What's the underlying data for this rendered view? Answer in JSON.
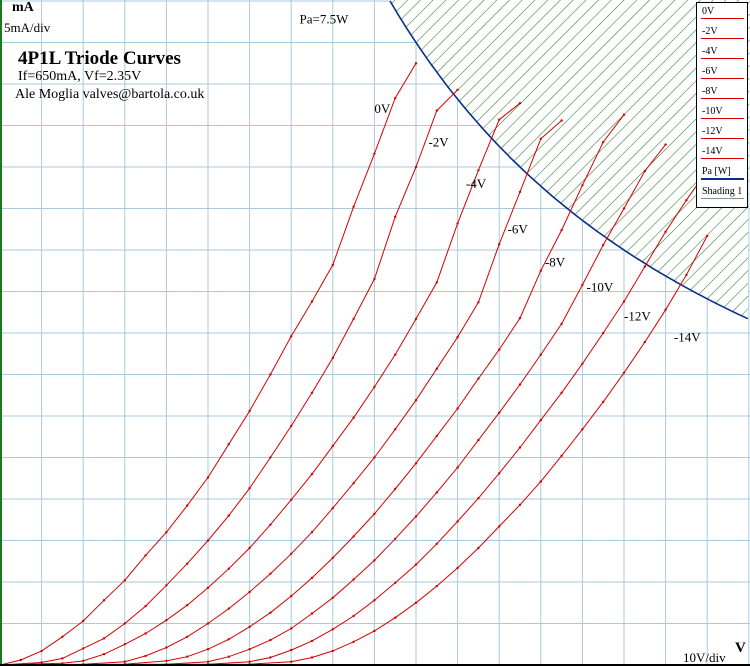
{
  "chart_data": {
    "type": "line",
    "title": "4P1L Triode Curves",
    "subtitle": "If=650mA, Vf=2.35V",
    "author": "Ale Moglia valves@bartola.co.uk",
    "y_unit": "mA",
    "y_scale": "5mA/div",
    "x_unit": "V",
    "x_scale": "10V/div",
    "xlim": [
      0,
      180
    ],
    "ylim": [
      0,
      80
    ],
    "grid": true,
    "x_grid_step": 10,
    "y_grid_step": 5,
    "power_curve": {
      "label": "Pa=7.5W",
      "watts": 7.5,
      "color": "#0b2e8a",
      "hatch_color": "#2e7d32"
    },
    "curve_color": "#d40000",
    "series": [
      {
        "name": "0V",
        "label_at": [
          90,
          66.5
        ],
        "points": [
          [
            0,
            0
          ],
          [
            5,
            0.6
          ],
          [
            10,
            1.7
          ],
          [
            15,
            3.4
          ],
          [
            20,
            5.3
          ],
          [
            25,
            7.8
          ],
          [
            30,
            10.2
          ],
          [
            35,
            13.2
          ],
          [
            40,
            16.0
          ],
          [
            45,
            19.2
          ],
          [
            50,
            22.6
          ],
          [
            55,
            26.6
          ],
          [
            60,
            30.6
          ],
          [
            65,
            35.0
          ],
          [
            70,
            39.6
          ],
          [
            75,
            43.8
          ],
          [
            80,
            48.2
          ],
          [
            85,
            55.2
          ],
          [
            90,
            61.6
          ],
          [
            95,
            68.3
          ],
          [
            100,
            72.5
          ]
        ]
      },
      {
        "name": "-2V",
        "label_at": [
          103,
          62.5
        ],
        "points": [
          [
            0,
            0
          ],
          [
            10,
            0.3
          ],
          [
            15,
            0.8
          ],
          [
            20,
            2.0
          ],
          [
            25,
            3.2
          ],
          [
            30,
            5.0
          ],
          [
            35,
            7.1
          ],
          [
            40,
            9.6
          ],
          [
            45,
            12.2
          ],
          [
            50,
            15.0
          ],
          [
            55,
            18.0
          ],
          [
            60,
            21.3
          ],
          [
            65,
            25.0
          ],
          [
            70,
            28.8
          ],
          [
            75,
            32.8
          ],
          [
            80,
            37.0
          ],
          [
            85,
            41.7
          ],
          [
            90,
            46.5
          ],
          [
            95,
            54.0
          ],
          [
            100,
            60.0
          ],
          [
            105,
            66.8
          ],
          [
            110,
            69.3
          ]
        ]
      },
      {
        "name": "-4V",
        "label_at": [
          112,
          57.5
        ],
        "points": [
          [
            0,
            0
          ],
          [
            15,
            0.2
          ],
          [
            20,
            0.5
          ],
          [
            25,
            1.3
          ],
          [
            30,
            2.5
          ],
          [
            35,
            3.8
          ],
          [
            40,
            5.4
          ],
          [
            45,
            7.2
          ],
          [
            50,
            9.3
          ],
          [
            55,
            11.6
          ],
          [
            60,
            14.1
          ],
          [
            65,
            16.9
          ],
          [
            70,
            19.9
          ],
          [
            75,
            23.0
          ],
          [
            80,
            26.4
          ],
          [
            85,
            29.8
          ],
          [
            90,
            33.5
          ],
          [
            95,
            37.4
          ],
          [
            100,
            41.7
          ],
          [
            105,
            46.1
          ],
          [
            110,
            53.2
          ],
          [
            115,
            59.6
          ],
          [
            120,
            65.7
          ],
          [
            125,
            67.7
          ]
        ]
      },
      {
        "name": "-6V",
        "label_at": [
          122,
          52.0
        ],
        "points": [
          [
            0,
            0
          ],
          [
            20,
            0.1
          ],
          [
            30,
            0.4
          ],
          [
            35,
            1.1
          ],
          [
            40,
            2.1
          ],
          [
            45,
            3.4
          ],
          [
            50,
            5.0
          ],
          [
            55,
            6.8
          ],
          [
            60,
            8.8
          ],
          [
            65,
            11.0
          ],
          [
            70,
            13.4
          ],
          [
            75,
            16.0
          ],
          [
            80,
            18.9
          ],
          [
            85,
            21.9
          ],
          [
            90,
            25.0
          ],
          [
            95,
            28.4
          ],
          [
            100,
            31.9
          ],
          [
            105,
            35.7
          ],
          [
            110,
            39.5
          ],
          [
            115,
            43.7
          ],
          [
            120,
            50.7
          ],
          [
            125,
            57.0
          ],
          [
            130,
            63.4
          ],
          [
            135,
            65.6
          ]
        ]
      },
      {
        "name": "-8V",
        "label_at": [
          131,
          48.0
        ],
        "points": [
          [
            0,
            0
          ],
          [
            30,
            0.1
          ],
          [
            40,
            0.5
          ],
          [
            45,
            1.0
          ],
          [
            50,
            1.9
          ],
          [
            55,
            3.1
          ],
          [
            60,
            4.6
          ],
          [
            65,
            6.3
          ],
          [
            70,
            8.3
          ],
          [
            75,
            10.5
          ],
          [
            80,
            12.9
          ],
          [
            85,
            15.5
          ],
          [
            90,
            18.2
          ],
          [
            95,
            21.2
          ],
          [
            100,
            24.3
          ],
          [
            105,
            27.6
          ],
          [
            110,
            30.9
          ],
          [
            115,
            34.5
          ],
          [
            120,
            38.0
          ],
          [
            125,
            41.8
          ],
          [
            130,
            47.5
          ],
          [
            135,
            52.4
          ],
          [
            140,
            57.8
          ],
          [
            145,
            63.0
          ],
          [
            150,
            66.3
          ]
        ]
      },
      {
        "name": "-10V",
        "label_at": [
          141,
          45.0
        ],
        "points": [
          [
            0,
            0
          ],
          [
            40,
            0.1
          ],
          [
            50,
            0.4
          ],
          [
            55,
            1.0
          ],
          [
            60,
            1.9
          ],
          [
            65,
            3.0
          ],
          [
            70,
            4.4
          ],
          [
            75,
            6.2
          ],
          [
            80,
            8.1
          ],
          [
            85,
            10.3
          ],
          [
            90,
            12.6
          ],
          [
            95,
            15.2
          ],
          [
            100,
            17.9
          ],
          [
            105,
            20.8
          ],
          [
            110,
            23.8
          ],
          [
            115,
            27.1
          ],
          [
            120,
            30.4
          ],
          [
            125,
            33.8
          ],
          [
            130,
            37.4
          ],
          [
            135,
            41.1
          ],
          [
            140,
            45.8
          ],
          [
            145,
            50.6
          ],
          [
            150,
            55.0
          ],
          [
            155,
            59.5
          ],
          [
            160,
            62.7
          ]
        ]
      },
      {
        "name": "-12V",
        "label_at": [
          150,
          41.5
        ],
        "points": [
          [
            0,
            0
          ],
          [
            50,
            0.1
          ],
          [
            60,
            0.4
          ],
          [
            65,
            0.9
          ],
          [
            70,
            1.8
          ],
          [
            75,
            2.9
          ],
          [
            80,
            4.3
          ],
          [
            85,
            5.9
          ],
          [
            90,
            7.8
          ],
          [
            95,
            9.9
          ],
          [
            100,
            12.1
          ],
          [
            105,
            14.6
          ],
          [
            110,
            17.3
          ],
          [
            115,
            20.1
          ],
          [
            120,
            23.1
          ],
          [
            125,
            26.2
          ],
          [
            130,
            29.5
          ],
          [
            135,
            32.8
          ],
          [
            140,
            36.3
          ],
          [
            145,
            40.0
          ],
          [
            150,
            43.8
          ],
          [
            155,
            48.0
          ],
          [
            160,
            52.2
          ],
          [
            165,
            56.0
          ],
          [
            170,
            59.6
          ]
        ]
      },
      {
        "name": "-14V",
        "label_at": [
          162,
          39.0
        ],
        "points": [
          [
            0,
            0
          ],
          [
            60,
            0.1
          ],
          [
            70,
            0.4
          ],
          [
            75,
            0.9
          ],
          [
            80,
            1.7
          ],
          [
            85,
            2.8
          ],
          [
            90,
            4.1
          ],
          [
            95,
            5.7
          ],
          [
            100,
            7.5
          ],
          [
            105,
            9.5
          ],
          [
            110,
            11.7
          ],
          [
            115,
            14.1
          ],
          [
            120,
            16.7
          ],
          [
            125,
            19.3
          ],
          [
            130,
            22.1
          ],
          [
            135,
            25.2
          ],
          [
            140,
            28.4
          ],
          [
            145,
            31.7
          ],
          [
            150,
            35.2
          ],
          [
            155,
            38.9
          ],
          [
            160,
            42.8
          ],
          [
            165,
            47.0
          ],
          [
            170,
            51.7
          ]
        ]
      }
    ]
  },
  "legend": {
    "items": [
      {
        "label": "0V",
        "color": "#d40000"
      },
      {
        "label": "-2V",
        "color": "#d40000"
      },
      {
        "label": "-4V",
        "color": "#d40000"
      },
      {
        "label": "-6V",
        "color": "#d40000"
      },
      {
        "label": "-8V",
        "color": "#d40000"
      },
      {
        "label": "-10V",
        "color": "#d40000"
      },
      {
        "label": "-12V",
        "color": "#d40000"
      },
      {
        "label": "-14V",
        "color": "#d40000"
      },
      {
        "label": "Pa [W]",
        "color": "#0b2e8a"
      },
      {
        "label": "Shading 1",
        "color": "#7a9a7a"
      }
    ]
  },
  "colors": {
    "grid": "#a9c9dc",
    "axis": "#000000"
  }
}
